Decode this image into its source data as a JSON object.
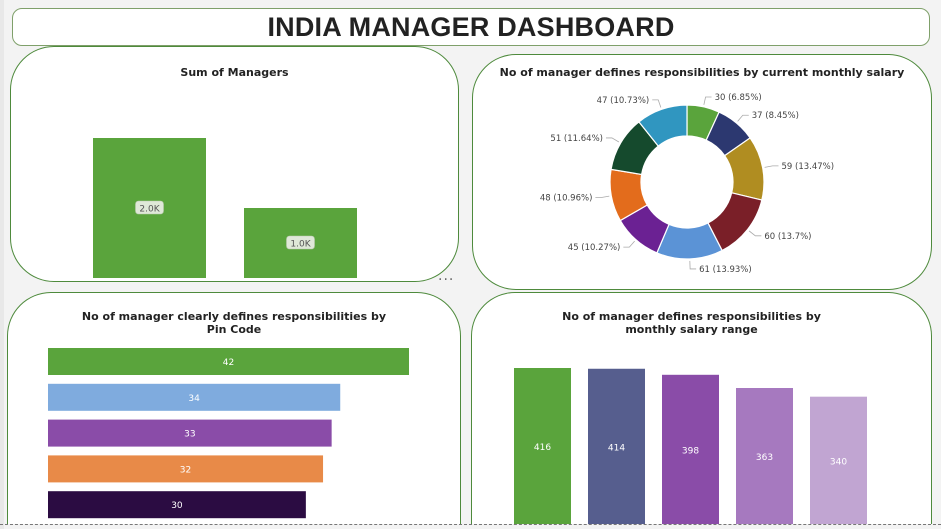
{
  "dashboard": {
    "title": "INDIA MANAGER DASHBOARD"
  },
  "colors": {
    "card_border": "#4e8a3c",
    "green": "#5aa43c"
  },
  "chart_data": [
    {
      "id": "sum_managers",
      "type": "bar",
      "title": "Sum of Managers",
      "categories": [
        "",
        ""
      ],
      "values": [
        2000,
        1000
      ],
      "labels": [
        "2.0K",
        "1.0K"
      ],
      "colors": [
        "#5aa43c",
        "#5aa43c"
      ],
      "ylim": [
        0,
        2300
      ]
    },
    {
      "id": "salary_donut",
      "type": "pie",
      "title": "No of manager defines responsibilities by current monthly salary",
      "values": [
        30,
        37,
        59,
        60,
        61,
        45,
        48,
        51,
        47
      ],
      "labels": [
        "30 (6.85%)",
        "37 (8.45%)",
        "59 (13.47%)",
        "60 (13.7%)",
        "61 (13.93%)",
        "45 (10.27%)",
        "48 (10.96%)",
        "51 (11.64%)",
        "47 (10.73%)"
      ],
      "colors": [
        "#5aa43c",
        "#2c3870",
        "#b08d21",
        "#7a1f28",
        "#5b93d6",
        "#6b2193",
        "#e36c1c",
        "#154a2d",
        "#3096c0"
      ]
    },
    {
      "id": "pincode_bars",
      "type": "bar",
      "orientation": "horizontal",
      "title": "No of manager clearly defines responsibilities by Pin Code",
      "values": [
        42,
        34,
        33,
        32,
        30
      ],
      "labels": [
        "42",
        "34",
        "33",
        "32",
        "30"
      ],
      "colors": [
        "#5aa43c",
        "#7fabde",
        "#8a4ca8",
        "#e88a48",
        "#2b0c42"
      ],
      "xlim": [
        0,
        43
      ]
    },
    {
      "id": "salary_range_bars",
      "type": "bar",
      "title": "No of manager defines responsibilities by monthly salary range",
      "values": [
        416,
        414,
        398,
        363,
        340
      ],
      "labels": [
        "416",
        "414",
        "398",
        "363",
        "340"
      ],
      "colors": [
        "#5aa43c",
        "#565e8e",
        "#8a4ca8",
        "#a679bf",
        "#c1a5d2"
      ],
      "ylim": [
        0,
        460
      ]
    }
  ]
}
